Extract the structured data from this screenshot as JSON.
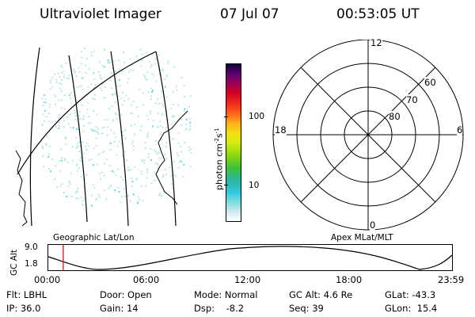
{
  "header": {
    "instrument": "Ultraviolet Imager",
    "date": "07 Jul 07",
    "time": "00:53:05 UT"
  },
  "colorbar": {
    "unit_label": "photon cm",
    "unit_exp1": "-2",
    "unit_mid": "s",
    "unit_exp2": "-1",
    "tick_labels": [
      "100",
      "10"
    ]
  },
  "left_panel": {
    "caption": "Geographic Lat/Lon"
  },
  "polar_plot": {
    "caption": "Apex MLat/MLT",
    "mlt_labels": {
      "top": "12",
      "bottom": "0",
      "left": "18",
      "right": "6"
    },
    "lat_labels": [
      "60",
      "70",
      "80"
    ]
  },
  "altitude_strip": {
    "axis_label": "GC Alt",
    "y_ticks": [
      "9.0",
      "1.8"
    ],
    "x_ticks": [
      "00:00",
      "06:00",
      "12:00",
      "18:00",
      "23:59"
    ],
    "current_time_fraction": 0.037
  },
  "footer": {
    "rows": [
      [
        "Flt: LBHL",
        "Door: Open",
        "Mode: Normal",
        "GC Alt: 4.6 Re",
        "GLat: -43.3"
      ],
      [
        "IP: 36.0",
        "Gain: 14",
        "Dsp:    -8.2",
        "Seq: 39",
        "GLon:  15.4"
      ]
    ]
  },
  "colors": {
    "marker": "#d00000",
    "speckle": "#bfe6e6"
  }
}
